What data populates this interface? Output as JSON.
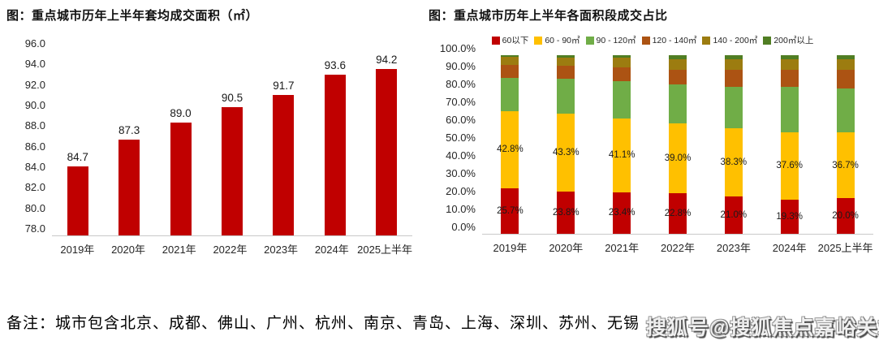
{
  "footer": {
    "note": "备注：城市包含北京、成都、佛山、广州、杭州、南京、青岛、上海、深圳、苏州、无锡"
  },
  "watermark": {
    "text": "搜狐号@搜狐焦点嘉峪关站"
  },
  "chart_data": [
    {
      "type": "bar",
      "title": "图：重点城市历年上半年套均成交面积（㎡）",
      "categories": [
        "2019年",
        "2020年",
        "2021年",
        "2022年",
        "2023年",
        "2024年",
        "2025上半年"
      ],
      "values": [
        84.7,
        87.3,
        89.0,
        90.5,
        91.7,
        93.6,
        94.2
      ],
      "data_labels": [
        "84.7",
        "87.3",
        "89.0",
        "90.5",
        "91.7",
        "93.6",
        "94.2"
      ],
      "ylabel": "",
      "xlabel": "",
      "ylim": [
        78.0,
        96.0
      ],
      "yticks": [
        "96.0",
        "94.0",
        "92.0",
        "90.0",
        "88.0",
        "86.0",
        "84.0",
        "82.0",
        "80.0",
        "78.0"
      ],
      "grid": false,
      "bar_color": "#C00000"
    },
    {
      "type": "stacked_bar",
      "title": "图：重点城市历年上半年各面积段成交占比",
      "categories": [
        "2019年",
        "2020年",
        "2021年",
        "2022年",
        "2023年",
        "2024年",
        "2025上半年"
      ],
      "ylim": [
        0,
        100
      ],
      "yticks": [
        "100.0%",
        "90.0%",
        "80.0%",
        "70.0%",
        "60.0%",
        "50.0%",
        "40.0%",
        "30.0%",
        "20.0%",
        "10.0%",
        "0.0%"
      ],
      "grid": false,
      "legend_position": "top",
      "series": [
        {
          "name": "60以下",
          "color": "#C00000",
          "values": [
            25.7,
            23.8,
            23.4,
            22.8,
            21.0,
            19.3,
            20.0
          ],
          "labels": [
            "25.7%",
            "23.8%",
            "23.4%",
            "22.8%",
            "21.0%",
            "19.3%",
            "20.0%"
          ]
        },
        {
          "name": "60 - 90㎡",
          "color": "#FFC000",
          "values": [
            42.8,
            43.3,
            41.1,
            39.0,
            38.3,
            37.6,
            36.7
          ],
          "labels": [
            "42.8%",
            "43.3%",
            "41.1%",
            "39.0%",
            "38.3%",
            "37.6%",
            "36.7%"
          ]
        },
        {
          "name": "90 - 120㎡",
          "color": "#70AD47",
          "values": [
            19.0,
            19.9,
            20.9,
            22.0,
            23.2,
            25.4,
            24.5
          ]
        },
        {
          "name": "120 - 140㎡",
          "color": "#AC5313",
          "values": [
            7.2,
            7.0,
            7.6,
            8.2,
            9.3,
            9.5,
            10.5
          ]
        },
        {
          "name": "140 - 200㎡",
          "color": "#9C7C10",
          "values": [
            4.3,
            4.5,
            5.5,
            5.8,
            6.0,
            6.0,
            6.0
          ]
        },
        {
          "name": "200㎡以上",
          "color": "#507E23",
          "values": [
            1.0,
            1.5,
            1.5,
            2.2,
            2.2,
            2.2,
            2.3
          ]
        }
      ]
    }
  ]
}
